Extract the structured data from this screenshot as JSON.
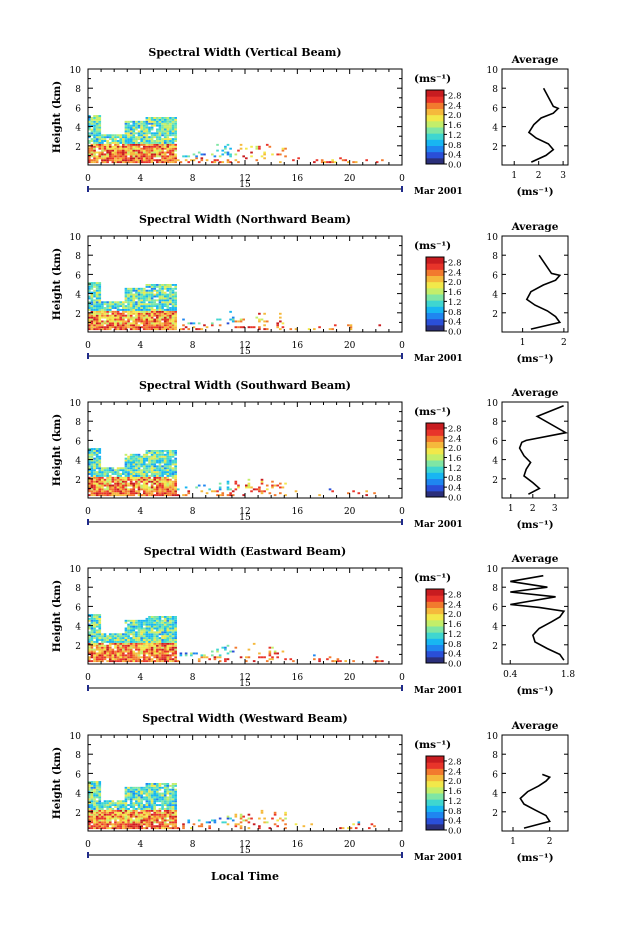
{
  "figure": {
    "date_label": "Mar 2001",
    "day_label": "15",
    "xlabel": "Local Time",
    "ylabel": "Height (km)",
    "colorbar_unit": "(ms⁻¹)",
    "avg_title": "Average",
    "avg_unit": "(ms⁻¹)"
  },
  "colors": {
    "scale": [
      "#2b2f7a",
      "#2a4fd8",
      "#1f86f0",
      "#18b6f2",
      "#3fd6d0",
      "#7fe6a4",
      "#c3ee6a",
      "#f2e84a",
      "#f5b93c",
      "#f27a2e",
      "#e8342a",
      "#c81c20"
    ]
  },
  "chart_data": [
    {
      "type": "heatmap",
      "title": "Spectral Width (Vertical Beam)",
      "xlabel": "Local Time",
      "ylabel": "Height (km)",
      "xlim": [
        0,
        24
      ],
      "ylim": [
        0,
        10
      ],
      "xticks": [
        "0",
        "4",
        "8",
        "12",
        "16",
        "20",
        "0"
      ],
      "yticks": [
        "2",
        "4",
        "6",
        "8",
        "10"
      ],
      "colorbar": {
        "ticks": [
          "0.0",
          "0.4",
          "0.8",
          "1.2",
          "1.6",
          "2.0",
          "2.4",
          "2.8"
        ],
        "range": [
          0,
          3.0
        ]
      },
      "average": {
        "xlabel": "(ms⁻¹)",
        "xticks": [
          "1",
          "2",
          "3"
        ],
        "xlim": [
          0.5,
          3.2
        ],
        "x": [
          1.7,
          2.3,
          2.6,
          2.4,
          1.9,
          1.6,
          1.8,
          2.1,
          2.6,
          2.8,
          2.6,
          2.2
        ],
        "y": [
          0.3,
          1.0,
          1.6,
          2.2,
          2.8,
          3.4,
          4.2,
          4.9,
          5.4,
          5.9,
          6.1,
          8.0
        ]
      }
    },
    {
      "type": "heatmap",
      "title": "Spectral Width (Northward Beam)",
      "xlabel": "Local Time",
      "ylabel": "Height (km)",
      "xlim": [
        0,
        24
      ],
      "ylim": [
        0,
        10
      ],
      "xticks": [
        "0",
        "4",
        "8",
        "12",
        "16",
        "20",
        "0"
      ],
      "yticks": [
        "2",
        "4",
        "6",
        "8",
        "10"
      ],
      "colorbar": {
        "ticks": [
          "0.0",
          "0.4",
          "0.8",
          "1.2",
          "1.6",
          "2.0",
          "2.4",
          "2.8"
        ],
        "range": [
          0,
          3.0
        ]
      },
      "average": {
        "xlabel": "(ms⁻¹)",
        "xticks": [
          "1",
          "2"
        ],
        "xlim": [
          0.5,
          2.1
        ],
        "x": [
          1.2,
          1.9,
          1.8,
          1.6,
          1.3,
          1.1,
          1.2,
          1.5,
          1.8,
          1.9,
          1.7,
          1.4
        ],
        "y": [
          0.3,
          1.0,
          1.6,
          2.2,
          2.8,
          3.4,
          4.2,
          4.9,
          5.4,
          5.9,
          6.1,
          8.0
        ]
      }
    },
    {
      "type": "heatmap",
      "title": "Spectral Width (Southward Beam)",
      "xlabel": "Local Time",
      "ylabel": "Height (km)",
      "xlim": [
        0,
        24
      ],
      "ylim": [
        0,
        10
      ],
      "xticks": [
        "0",
        "4",
        "8",
        "12",
        "16",
        "20",
        "0"
      ],
      "yticks": [
        "2",
        "4",
        "6",
        "8",
        "10"
      ],
      "colorbar": {
        "ticks": [
          "0.0",
          "0.4",
          "0.8",
          "1.2",
          "1.6",
          "2.0",
          "2.4",
          "2.8"
        ],
        "range": [
          0,
          3.0
        ]
      },
      "average": {
        "xlabel": "(ms⁻¹)",
        "xticks": [
          "1",
          "2",
          "3"
        ],
        "xlim": [
          0.6,
          3.6
        ],
        "x": [
          1.8,
          2.3,
          2.0,
          1.6,
          1.7,
          1.9,
          1.6,
          1.4,
          1.5,
          1.7,
          3.5,
          2.2,
          3.4
        ],
        "y": [
          0.4,
          1.0,
          1.6,
          2.3,
          3.0,
          3.7,
          4.4,
          5.2,
          5.8,
          6.0,
          6.8,
          8.5,
          9.6
        ]
      }
    },
    {
      "type": "heatmap",
      "title": "Spectral Width (Eastward Beam)",
      "xlabel": "Local Time",
      "ylabel": "Height (km)",
      "xlim": [
        0,
        24
      ],
      "ylim": [
        0,
        10
      ],
      "xticks": [
        "0",
        "4",
        "8",
        "12",
        "16",
        "20",
        "0"
      ],
      "yticks": [
        "2",
        "4",
        "6",
        "8",
        "10"
      ],
      "colorbar": {
        "ticks": [
          "0.0",
          "0.4",
          "0.8",
          "1.2",
          "1.6",
          "2.0",
          "2.4",
          "2.8"
        ],
        "range": [
          0,
          3.0
        ]
      },
      "average": {
        "xlabel": "(ms⁻¹)",
        "xticks": [
          "0.4",
          "1.8"
        ],
        "xlim": [
          0.2,
          1.8
        ],
        "x": [
          1.7,
          1.6,
          1.3,
          1.0,
          0.95,
          1.1,
          1.4,
          1.6,
          1.7,
          1.1,
          0.4,
          1.5,
          0.4,
          1.3,
          0.4,
          1.2
        ],
        "y": [
          0.4,
          1.0,
          1.6,
          2.3,
          3.0,
          3.7,
          4.4,
          4.9,
          5.5,
          5.9,
          6.2,
          7.0,
          7.5,
          8.0,
          8.6,
          9.2
        ]
      }
    },
    {
      "type": "heatmap",
      "title": "Spectral Width (Westward Beam)",
      "xlabel": "Local Time",
      "ylabel": "Height (km)",
      "xlim": [
        0,
        24
      ],
      "ylim": [
        0,
        10
      ],
      "xticks": [
        "0",
        "4",
        "8",
        "12",
        "16",
        "20",
        "0"
      ],
      "yticks": [
        "2",
        "4",
        "6",
        "8",
        "10"
      ],
      "colorbar": {
        "ticks": [
          "0.0",
          "0.4",
          "0.8",
          "1.2",
          "1.6",
          "2.0",
          "2.4",
          "2.8"
        ],
        "range": [
          0,
          3.0
        ]
      },
      "average": {
        "xlabel": "(ms⁻¹)",
        "xticks": [
          "1",
          "2"
        ],
        "xlim": [
          0.7,
          2.5
        ],
        "x": [
          1.3,
          2.0,
          1.9,
          1.6,
          1.3,
          1.2,
          1.4,
          1.7,
          1.9,
          2.0,
          1.8
        ],
        "y": [
          0.3,
          1.0,
          1.6,
          2.2,
          2.8,
          3.4,
          4.1,
          4.7,
          5.2,
          5.6,
          5.9
        ]
      }
    }
  ]
}
